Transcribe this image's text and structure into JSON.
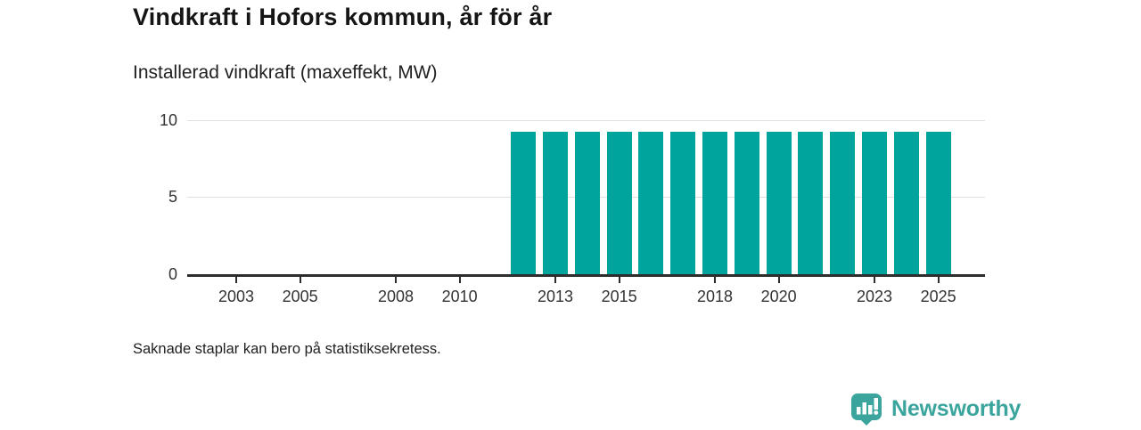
{
  "header": {
    "title": "Vindkraft i Hofors kommun, år för år",
    "subtitle": "Installerad vindkraft (maxeffekt, MW)"
  },
  "footer": {
    "note": "Saknade staplar kan bero på statistiksekretess."
  },
  "branding": {
    "name": "Newsworthy",
    "icon": "bar-chart-speech-bubble-icon"
  },
  "colors": {
    "bar": "#00a49c",
    "brand": "#3aa49d",
    "axis": "#2d2d2d",
    "grid": "#e0e0e0",
    "title_text": "#151515",
    "body_text": "#1f1f1f",
    "tick_text": "#333333"
  },
  "chart_data": {
    "type": "bar",
    "title": "Vindkraft i Hofors kommun, år för år",
    "subtitle": "Installerad vindkraft (maxeffekt, MW)",
    "xlabel": "",
    "ylabel": "Installerad vindkraft (maxeffekt, MW)",
    "categories": [
      2002,
      2003,
      2004,
      2005,
      2006,
      2007,
      2008,
      2009,
      2010,
      2011,
      2012,
      2013,
      2014,
      2015,
      2016,
      2017,
      2018,
      2019,
      2020,
      2021,
      2022,
      2023,
      2024,
      2025
    ],
    "values": [
      null,
      null,
      null,
      null,
      null,
      null,
      null,
      null,
      null,
      null,
      9.2,
      9.2,
      9.2,
      9.2,
      9.2,
      9.2,
      9.2,
      9.2,
      9.2,
      9.2,
      9.2,
      9.2,
      9.2,
      9.2
    ],
    "x_tick_labels": [
      2003,
      2005,
      2008,
      2010,
      2013,
      2015,
      2018,
      2020,
      2023,
      2025
    ],
    "y_ticks": [
      0,
      5,
      10
    ],
    "y_gridlines": [
      5,
      10
    ],
    "ylim": [
      0,
      10
    ],
    "grid": "horizontal",
    "legend": "none",
    "note": "Saknade staplar kan bero på statistiksekretess."
  }
}
